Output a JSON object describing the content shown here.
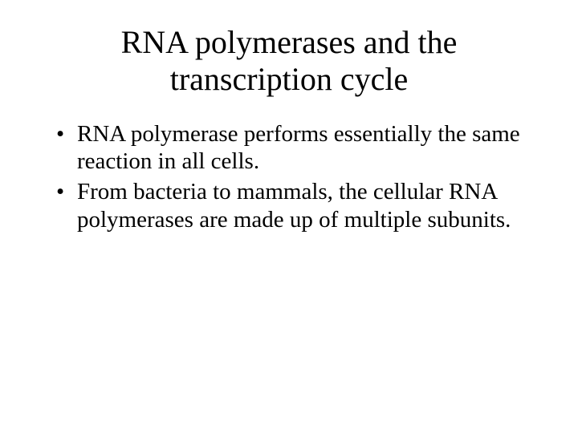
{
  "slide": {
    "title_line1": "RNA polymerases and the",
    "title_line2": "transcription cycle",
    "bullets": [
      "RNA polymerase performs essentially the same reaction in all cells.",
      "From bacteria to mammals, the cellular RNA polymerases are made up of multiple subunits."
    ],
    "colors": {
      "background": "#ffffff",
      "text": "#000000"
    },
    "typography": {
      "font_family": "Times New Roman",
      "title_fontsize_pt": 40,
      "body_fontsize_pt": 29
    }
  }
}
